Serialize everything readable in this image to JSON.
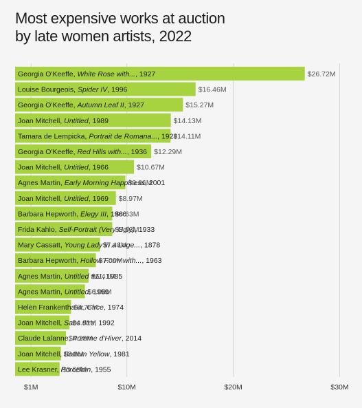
{
  "title_line1": "Most expensive works at auction",
  "title_line2": "by late women artists, 2022",
  "chart_data": {
    "type": "bar",
    "orientation": "horizontal",
    "bar_color": "#a8d341",
    "grid": true,
    "xlim": [
      -0.5,
      31
    ],
    "ticks": [
      {
        "value": 1,
        "label": "$1M"
      },
      {
        "value": 10,
        "label": "$10M"
      },
      {
        "value": 20,
        "label": "$20M"
      },
      {
        "value": 30,
        "label": "$30M"
      }
    ],
    "bars": [
      {
        "artist": "Georgia O'Keeffe",
        "work": "White Rose with...",
        "year": ", 1927",
        "value": 26.72,
        "value_label": "$26.72M"
      },
      {
        "artist": "Louise Bourgeois",
        "work": "Spider IV",
        "year": ", 1996",
        "value": 16.46,
        "value_label": "$16.46M"
      },
      {
        "artist": "Georgia O'Keeffe",
        "work": "Autumn Leaf II",
        "year": ", 1927",
        "value": 15.27,
        "value_label": "$15.27M"
      },
      {
        "artist": "Joan Mitchell",
        "work": "Untitled",
        "year": ", 1989",
        "value": 14.13,
        "value_label": "$14.13M"
      },
      {
        "artist": "Tamara de Lempicka",
        "work": "Portrait de Romana...",
        "year": ", 1928",
        "value": 14.11,
        "value_label": "$14.11M"
      },
      {
        "artist": "Georgia O'Keeffe",
        "work": "Red Hills with...",
        "year": ", 1936",
        "value": 12.29,
        "value_label": "$12.29M"
      },
      {
        "artist": "Joan Mitchell",
        "work": "Untitled",
        "year": ", 1966",
        "value": 10.67,
        "value_label": "$10.67M"
      },
      {
        "artist": "Agnes Martin",
        "work": "Early Morning Happiness",
        "year": ", 2001",
        "value": 9.86,
        "value_label": "$9.86M"
      },
      {
        "artist": "Joan Mitchell",
        "work": "Untitled",
        "year": ", 1969",
        "value": 8.97,
        "value_label": "$8.97M"
      },
      {
        "artist": "Barbara Hepworth",
        "work": "Elegy III",
        "year": ", 1966",
        "value": 8.63,
        "value_label": "$8.63M"
      },
      {
        "artist": "Frida Kahlo",
        "work": "Self-Portrait (Very Ugly)",
        "year": ", 1933",
        "value": 8.63,
        "value_label": "$8.63M"
      },
      {
        "artist": "Mary Cassatt",
        "work": "Young Lady in a Loge...",
        "year": ", 1878",
        "value": 7.48,
        "value_label": "$7.48M"
      },
      {
        "artist": "Barbara Hepworth",
        "work": "Hollow Form with...",
        "year": ", 1963",
        "value": 7.09,
        "value_label": "$7.09M"
      },
      {
        "artist": "Agnes Martin",
        "work": "Untitled #11",
        "year": ", 1985",
        "value": 6.41,
        "value_label": "$6.41M"
      },
      {
        "artist": "Agnes Martin",
        "work": "Untitled",
        "year": ", 1999",
        "value": 6.06,
        "value_label": "$6.06M"
      },
      {
        "artist": "Helen Frankenthaler",
        "work": "Circe",
        "year": ", 1974",
        "value": 4.76,
        "value_label": "$4.76M"
      },
      {
        "artist": "Joan Mitchell",
        "work": "Sans titre",
        "year": ", 1992",
        "value": 4.61,
        "value_label": "$4.61M"
      },
      {
        "artist": "Claude Lalanne",
        "work": "Pomme d'Hiver",
        "year": ", 2014",
        "value": 4.28,
        "value_label": "$4.28M"
      },
      {
        "artist": "Joan Mitchell",
        "work": "Bottom Yellow",
        "year": ", 1981",
        "value": 3.8,
        "value_label": "$3.8M"
      },
      {
        "artist": "Lee Krasner",
        "work": "Porcelain",
        "year": ", 1955",
        "value": 3.68,
        "value_label": "$3.68M"
      }
    ]
  }
}
